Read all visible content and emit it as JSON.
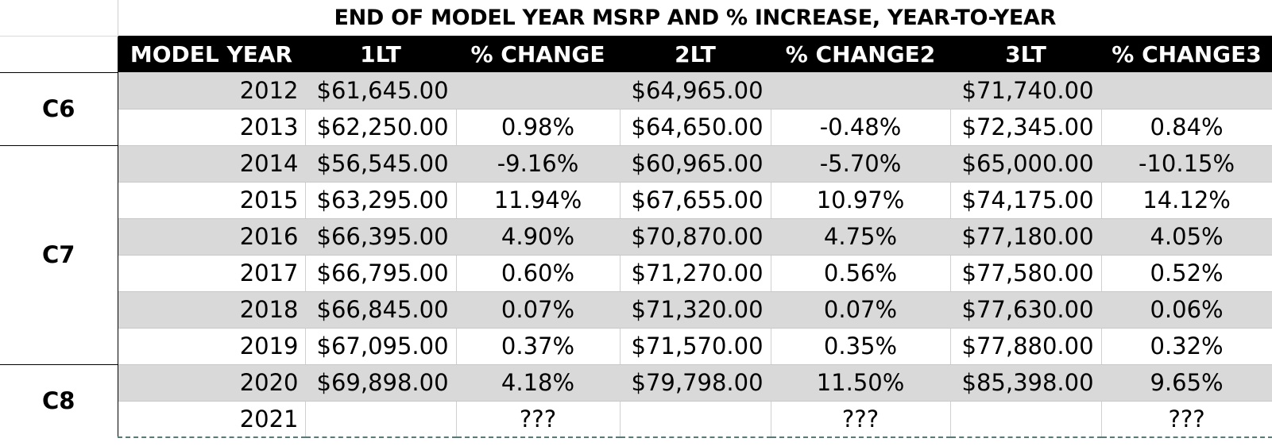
{
  "title": "END OF MODEL YEAR MSRP AND % INCREASE, YEAR-TO-YEAR",
  "headers": [
    "MODEL YEAR",
    "1LT",
    "% CHANGE",
    "2LT",
    "% CHANGE2",
    "3LT",
    "% CHANGE3"
  ],
  "currency_symbol": "$",
  "groups": [
    {
      "label": "C6",
      "rows": [
        {
          "year": "2012",
          "lt1": "61,645.00",
          "pct1": "",
          "lt2": "64,965.00",
          "pct2": "",
          "lt3": "71,740.00",
          "pct3": ""
        },
        {
          "year": "2013",
          "lt1": "62,250.00",
          "pct1": "0.98%",
          "lt2": "64,650.00",
          "pct2": "-0.48%",
          "lt3": "72,345.00",
          "pct3": "0.84%"
        }
      ]
    },
    {
      "label": "C7",
      "rows": [
        {
          "year": "2014",
          "lt1": "56,545.00",
          "pct1": "-9.16%",
          "lt2": "60,965.00",
          "pct2": "-5.70%",
          "lt3": "65,000.00",
          "pct3": "-10.15%"
        },
        {
          "year": "2015",
          "lt1": "63,295.00",
          "pct1": "11.94%",
          "lt2": "67,655.00",
          "pct2": "10.97%",
          "lt3": "74,175.00",
          "pct3": "14.12%"
        },
        {
          "year": "2016",
          "lt1": "66,395.00",
          "pct1": "4.90%",
          "lt2": "70,870.00",
          "pct2": "4.75%",
          "lt3": "77,180.00",
          "pct3": "4.05%"
        },
        {
          "year": "2017",
          "lt1": "66,795.00",
          "pct1": "0.60%",
          "lt2": "71,270.00",
          "pct2": "0.56%",
          "lt3": "77,580.00",
          "pct3": "0.52%"
        },
        {
          "year": "2018",
          "lt1": "66,845.00",
          "pct1": "0.07%",
          "lt2": "71,320.00",
          "pct2": "0.07%",
          "lt3": "77,630.00",
          "pct3": "0.06%"
        },
        {
          "year": "2019",
          "lt1": "67,095.00",
          "pct1": "0.37%",
          "lt2": "71,570.00",
          "pct2": "0.35%",
          "lt3": "77,880.00",
          "pct3": "0.32%"
        }
      ]
    },
    {
      "label": "C8",
      "rows": [
        {
          "year": "2020",
          "lt1": "69,898.00",
          "pct1": "4.18%",
          "lt2": "79,798.00",
          "pct2": "11.50%",
          "lt3": "85,398.00",
          "pct3": "9.65%"
        },
        {
          "year": "2021",
          "lt1": "",
          "pct1": "???",
          "lt2": "",
          "pct2": "???",
          "lt3": "",
          "pct3": "???"
        }
      ]
    }
  ]
}
